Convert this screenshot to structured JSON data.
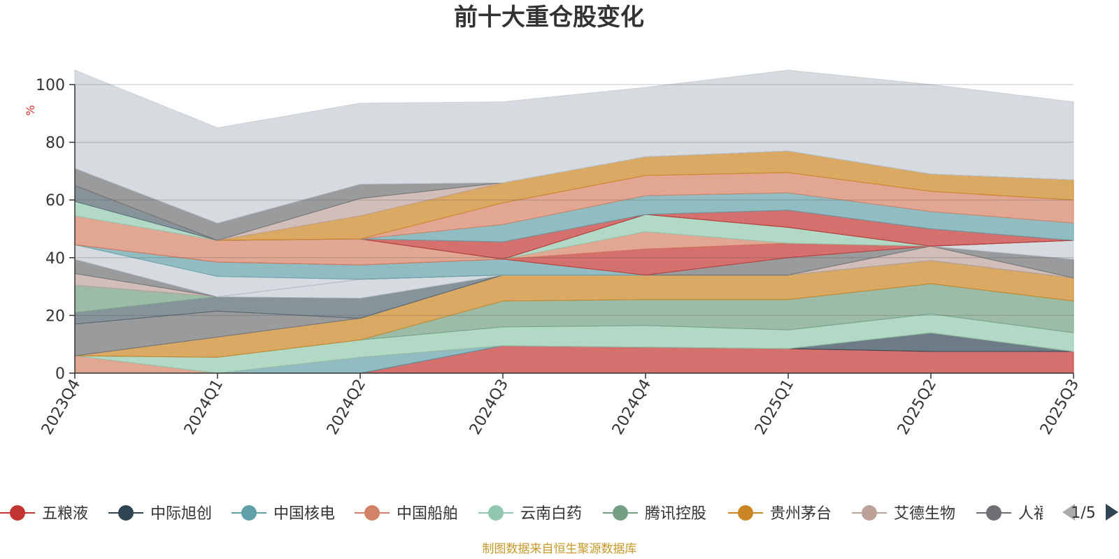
{
  "title": "前十大重仓股变化",
  "source_note": "制图数据来自恒生聚源数据库",
  "legend_page": "1/5",
  "chart_data": {
    "type": "area",
    "stacked": true,
    "categories": [
      "2023Q4",
      "2024Q1",
      "2024Q2",
      "2024Q3",
      "2024Q4",
      "2025Q1",
      "2025Q2",
      "2025Q3"
    ],
    "ylabel": "%",
    "ylim": [
      0,
      100
    ],
    "yticks": [
      0,
      20,
      40,
      60,
      80,
      100
    ],
    "grid": true,
    "legend_position": "bottom",
    "series": [
      {
        "name": "五粮液",
        "color": "#c23531",
        "values": [
          0,
          0,
          0,
          9.5,
          9,
          8.5,
          7.5,
          7.5
        ]
      },
      {
        "name": "中际旭创",
        "color": "#2f4554",
        "values": [
          0,
          0,
          0,
          0,
          0,
          0,
          6.5,
          0
        ]
      },
      {
        "name": "中国核电",
        "color": "#61a0a8",
        "values": [
          0,
          0,
          5.5,
          0,
          0,
          0,
          0,
          0
        ]
      },
      {
        "name": "中国船舶",
        "color": "#d48265",
        "values": [
          6,
          0,
          0,
          0,
          0,
          0,
          0,
          0
        ]
      },
      {
        "name": "云南白药",
        "color": "#91c7ae",
        "values": [
          0,
          5.5,
          6,
          6.5,
          7.5,
          6.5,
          6.5,
          6.5
        ]
      },
      {
        "name": "腾讯控股",
        "color": "#749f83",
        "values": [
          0,
          0,
          0,
          9,
          9,
          10.5,
          10.5,
          11
        ]
      },
      {
        "name": "贵州茅台",
        "color": "#ca8622",
        "values": [
          0,
          7,
          7.5,
          9,
          8.5,
          8.5,
          8,
          8
        ]
      },
      {
        "name": "艾德生物",
        "color": "#bda29a",
        "values": [
          0,
          0,
          0,
          0,
          0,
          0,
          0,
          0
        ]
      },
      {
        "name": "人福医药",
        "color": "#6e7074",
        "values": [
          11,
          9,
          0,
          0,
          0,
          0,
          0,
          0
        ]
      },
      {
        "name": "",
        "color": "#546570",
        "values": [
          4,
          5,
          7,
          0,
          0,
          0,
          0,
          0
        ]
      },
      {
        "name": "",
        "color": "#c4ccd3",
        "values": [
          0,
          0,
          6.5,
          0,
          0,
          0,
          0,
          0
        ]
      },
      {
        "name": "",
        "color": "#749f83",
        "values": [
          9.5,
          0,
          0,
          0,
          0,
          0,
          0,
          0
        ]
      },
      {
        "name": "",
        "color": "#bda29a",
        "values": [
          4,
          0,
          0,
          0,
          0,
          0,
          5,
          0
        ]
      },
      {
        "name": "",
        "color": "#6e7074",
        "values": [
          5,
          0,
          0,
          0,
          0,
          6,
          0,
          6.5
        ]
      },
      {
        "name": "",
        "color": "#c4ccd3",
        "values": [
          5,
          7,
          0,
          0,
          0,
          0,
          0,
          6.5
        ]
      },
      {
        "name": "",
        "color": "#61a0a8",
        "values": [
          0,
          5,
          5,
          5.5,
          0,
          0,
          0,
          0
        ]
      },
      {
        "name": "",
        "color": "#c23531",
        "values": [
          0,
          0,
          0,
          0,
          9,
          5,
          0,
          0
        ]
      },
      {
        "name": "",
        "color": "#d48265",
        "values": [
          10,
          7.5,
          9,
          0,
          6,
          0,
          0,
          0
        ]
      },
      {
        "name": "",
        "color": "#91c7ae",
        "values": [
          5,
          0,
          0,
          0,
          6,
          5.5,
          0,
          0
        ]
      },
      {
        "name": "",
        "color": "#546570",
        "values": [
          5.5,
          0,
          0,
          0,
          0,
          0,
          0,
          0
        ]
      },
      {
        "name": "",
        "color": "#c23531",
        "values": [
          0,
          0,
          0,
          6,
          0,
          6,
          6,
          0
        ]
      },
      {
        "name": "",
        "color": "#61a0a8",
        "values": [
          0,
          0,
          0,
          6,
          6.5,
          6,
          6,
          6
        ]
      },
      {
        "name": "",
        "color": "#d48265",
        "values": [
          0,
          0,
          0,
          7.5,
          7,
          7,
          7,
          8
        ]
      },
      {
        "name": "",
        "color": "#ca8622",
        "values": [
          0,
          0,
          8,
          7,
          6.5,
          7.5,
          6,
          7
        ]
      },
      {
        "name": "",
        "color": "#bda29a",
        "values": [
          0,
          0,
          6,
          0,
          0,
          0,
          0,
          0
        ]
      },
      {
        "name": "",
        "color": "#6e7074",
        "values": [
          6,
          6,
          5,
          0,
          0,
          0,
          0,
          0
        ]
      },
      {
        "name": "",
        "color": "#c4ccd3",
        "values": [
          34,
          33,
          28,
          28,
          24,
          28,
          31,
          27
        ]
      }
    ],
    "legend_visible": [
      "五粮液",
      "中际旭创",
      "中国核电",
      "中国船舶",
      "云南白药",
      "腾讯控股",
      "贵州茅台",
      "艾德生物",
      "人福医药"
    ]
  }
}
